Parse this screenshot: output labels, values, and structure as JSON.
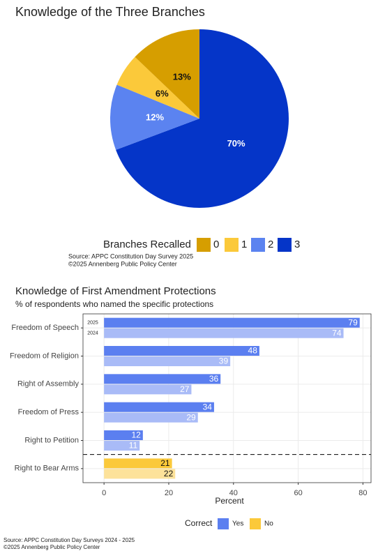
{
  "chart_data": [
    {
      "type": "pie",
      "title": "Knowledge of the Three Branches",
      "legend_title": "Branches Recalled",
      "categories": [
        "0",
        "1",
        "2",
        "3"
      ],
      "values": [
        13,
        6,
        12,
        70
      ],
      "value_labels": [
        "13%",
        "6%",
        "12%",
        "70%"
      ],
      "colors": [
        "#d69e00",
        "#fbc93a",
        "#5b83f0",
        "#0535c8"
      ],
      "label_colors": [
        "#111111",
        "#111111",
        "#ffffff",
        "#ffffff"
      ],
      "source": [
        "Source: APPC Constitution Day Survey 2025",
        "©2025 Annenberg Public Policy Center"
      ]
    },
    {
      "type": "hbar",
      "title": "Knowledge of First Amendment Protections",
      "subtitle": "% of respondents who named the specific protections",
      "categories": [
        "Freedom of Speech",
        "Freedom of Religion",
        "Right of Assembly",
        "Freedom of Press",
        "Right to Petition",
        "Right to Bear Arms"
      ],
      "series": [
        {
          "name": "2025",
          "values": [
            79,
            48,
            36,
            34,
            12,
            21
          ],
          "colors": [
            "#5b7ff0",
            "#5b7ff0",
            "#5b7ff0",
            "#5b7ff0",
            "#5b7ff0",
            "#fbc93a"
          ]
        },
        {
          "name": "2024",
          "values": [
            74,
            39,
            27,
            29,
            11,
            22
          ],
          "colors": [
            "#a9bbf7",
            "#a9bbf7",
            "#a9bbf7",
            "#a9bbf7",
            "#a9bbf7",
            "#fde29a"
          ]
        }
      ],
      "label_colors": [
        "#ffffff",
        "#ffffff",
        "#ffffff",
        "#ffffff",
        "#ffffff",
        "#111111"
      ],
      "x_label": "Percent",
      "xlim": [
        -6.5,
        82.5
      ],
      "xticks": [
        0,
        20,
        40,
        60,
        80
      ],
      "grid": true,
      "legend": {
        "title": "Correct",
        "entries": [
          {
            "name": "Yes",
            "color": "#5b7ff0"
          },
          {
            "name": "No",
            "color": "#fbc93a"
          }
        ]
      },
      "source": [
        "Source: APPC Constitution Day Surveys 2024 - 2025",
        "©2025 Annenberg Public Policy Center"
      ]
    }
  ]
}
